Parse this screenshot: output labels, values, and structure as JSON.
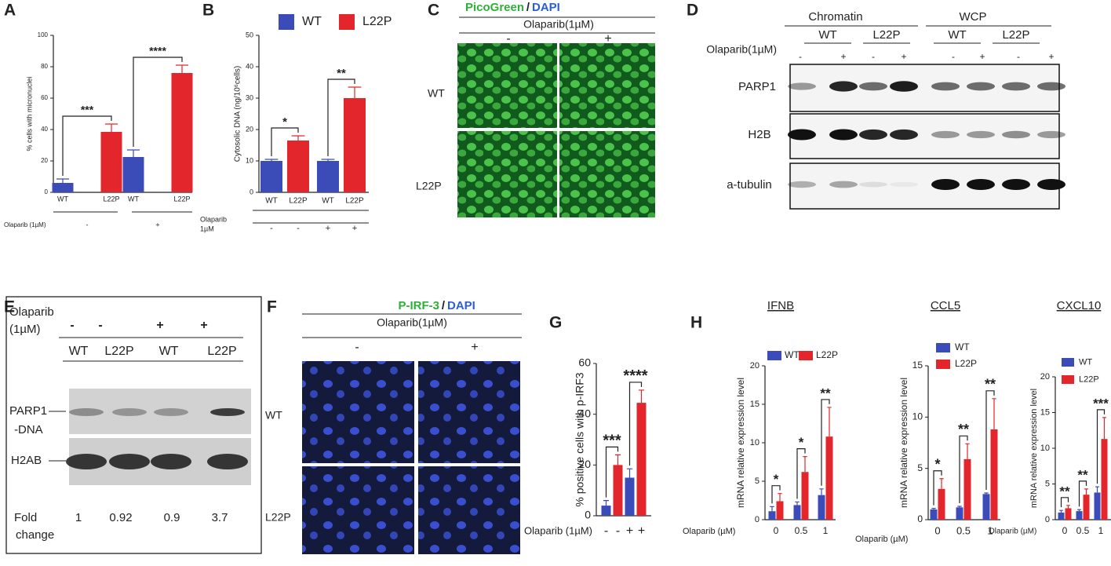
{
  "panel_labels": [
    "A",
    "B",
    "C",
    "D",
    "E",
    "F",
    "G",
    "H"
  ],
  "chart_data": [
    {
      "type": "bar",
      "y_label": "% cells with micronuclei",
      "x_label": "Olaparib (1µM)",
      "categories": [
        "-",
        "+"
      ],
      "category_labels": "group",
      "bar_labels": true,
      "legend": false,
      "series": [
        {
          "name": "WT",
          "color": "#3b4cb8",
          "values": [
            6,
            22.5
          ],
          "errors": [
            2.5,
            4.5
          ]
        },
        {
          "name": "L22P",
          "color": "#e3262b",
          "values": [
            38.5,
            76
          ],
          "errors": [
            5,
            5
          ]
        }
      ],
      "ylim": [
        0,
        100
      ],
      "yticks": [
        0,
        20,
        40,
        60,
        80,
        100
      ],
      "annotations": [
        "***",
        "****"
      ]
    },
    {
      "type": "bar",
      "y_label": "Cytosolic DNA (ng/10⁶cells)",
      "x_label": [
        "Olaparib",
        "1µM"
      ],
      "categories": [
        "-",
        "+"
      ],
      "category_labels": "bar",
      "bar_labels": true,
      "legend": true,
      "series": [
        {
          "name": "WT",
          "color": "#3b4cb8",
          "values": [
            10,
            10
          ],
          "errors": [
            0.5,
            0.5
          ]
        },
        {
          "name": "L22P",
          "color": "#e3262b",
          "values": [
            16.5,
            30
          ],
          "errors": [
            1.5,
            3.5
          ]
        }
      ],
      "ylim": [
        0,
        50
      ],
      "yticks": [
        0,
        10,
        20,
        30,
        40,
        50
      ],
      "annotations": [
        "*",
        "**"
      ]
    },
    {
      "type": "bar",
      "y_label": "% positive cells with p-IRF3",
      "x_label": "Olaparib (1µM)",
      "categories": [
        "-",
        "+"
      ],
      "category_labels": "bar",
      "bar_labels": false,
      "legend": false,
      "series": [
        {
          "color": "#3b4cb8",
          "values": [
            4,
            15
          ],
          "errors": [
            2,
            3.5
          ]
        },
        {
          "color": "#e3262b",
          "values": [
            20,
            44.5
          ],
          "errors": [
            4,
            5
          ]
        }
      ],
      "ylim": [
        0,
        60
      ],
      "yticks": [
        0,
        20,
        40,
        60
      ],
      "annotations": [
        "***",
        "****"
      ]
    },
    {
      "type": "bar",
      "title": "IFNB",
      "y_label": "mRNA relative expression level",
      "x_label": "Olaparib (µM)",
      "categories": [
        "0",
        "0.5",
        "1"
      ],
      "category_labels": "group",
      "bar_labels": false,
      "legend": true,
      "series": [
        {
          "name": "WT",
          "color": "#3b4cb8",
          "values": [
            1.1,
            1.9,
            3.2
          ],
          "errors": [
            0.6,
            0.4,
            0.8
          ]
        },
        {
          "name": "L22P",
          "color": "#e3262b",
          "values": [
            2.4,
            6.2,
            10.8
          ],
          "errors": [
            1,
            2,
            3.8
          ]
        }
      ],
      "ylim": [
        0,
        20
      ],
      "yticks": [
        0,
        5,
        10,
        15,
        20
      ],
      "annotations": [
        "*",
        "*",
        "**"
      ]
    },
    {
      "type": "bar",
      "title": "CCL5",
      "y_label": "mRNA relative expression level",
      "x_label": "Olaparib (µM)",
      "categories": [
        "0",
        "0.5",
        "1"
      ],
      "category_labels": "group",
      "bar_labels": false,
      "legend": true,
      "series": [
        {
          "name": "WT",
          "color": "#3b4cb8",
          "values": [
            1,
            1.2,
            2.5
          ],
          "errors": [
            0.1,
            0.1,
            0.1
          ]
        },
        {
          "name": "L22P",
          "color": "#e3262b",
          "values": [
            3,
            5.9,
            8.8
          ],
          "errors": [
            1,
            1.5,
            3
          ]
        }
      ],
      "ylim": [
        0,
        15
      ],
      "yticks": [
        0,
        5,
        10,
        15
      ],
      "annotations": [
        "*",
        "**",
        "**"
      ]
    },
    {
      "type": "bar",
      "title": "CXCL10",
      "y_label": "mRNA relative expression level",
      "x_label": "Olaparib (µM)",
      "categories": [
        "0",
        "0.5",
        "1"
      ],
      "category_labels": "group",
      "bar_labels": false,
      "legend": true,
      "series": [
        {
          "name": "WT",
          "color": "#3b4cb8",
          "values": [
            1,
            1.2,
            3.8
          ],
          "errors": [
            0.3,
            0.2,
            0.8
          ]
        },
        {
          "name": "L22P",
          "color": "#e3262b",
          "values": [
            1.6,
            3.5,
            11.3
          ],
          "errors": [
            0.4,
            0.8,
            3
          ]
        }
      ],
      "ylim": [
        0,
        20
      ],
      "yticks": [
        0,
        5,
        10,
        15,
        20
      ],
      "annotations": [
        "**",
        "**",
        "***"
      ]
    }
  ],
  "picogreen": {
    "stain": "PicoGreen",
    "slash": "/",
    "dapi": "DAPI",
    "treatment": "Olaparib(1µM)",
    "signs": [
      "-",
      "+"
    ],
    "rows": [
      "WT",
      "L22P"
    ]
  },
  "western_d": {
    "groups": [
      "Chromatin",
      "WCP"
    ],
    "lines": [
      "WT",
      "L22P",
      "WT",
      "L22P"
    ],
    "treatment": "Olaparib(1µM)",
    "signs": [
      "-",
      "+",
      "-",
      "+",
      "-",
      "+",
      "-",
      "+"
    ],
    "rows": [
      "PARP1",
      "H2B",
      "a-tubulin"
    ]
  },
  "western_e": {
    "treatment": [
      "Olaparib",
      "(1µM)"
    ],
    "signs": [
      "-",
      "-",
      "+",
      "+"
    ],
    "lines": [
      "WT",
      "L22P",
      "WT",
      "L22P"
    ],
    "rows": [
      [
        "PARP1",
        "-DNA"
      ],
      [
        "H2AB"
      ]
    ],
    "fold_label": [
      "Fold",
      "change"
    ],
    "fold_change": [
      1,
      0.92,
      0.9,
      3.7
    ]
  },
  "irf3": {
    "stain": "P-IRF-3",
    "slash": "/",
    "dapi": "DAPI",
    "treatment": "Olaparib(1µM)",
    "signs": [
      "-",
      "+"
    ],
    "rows": [
      "WT",
      "L22P"
    ]
  }
}
